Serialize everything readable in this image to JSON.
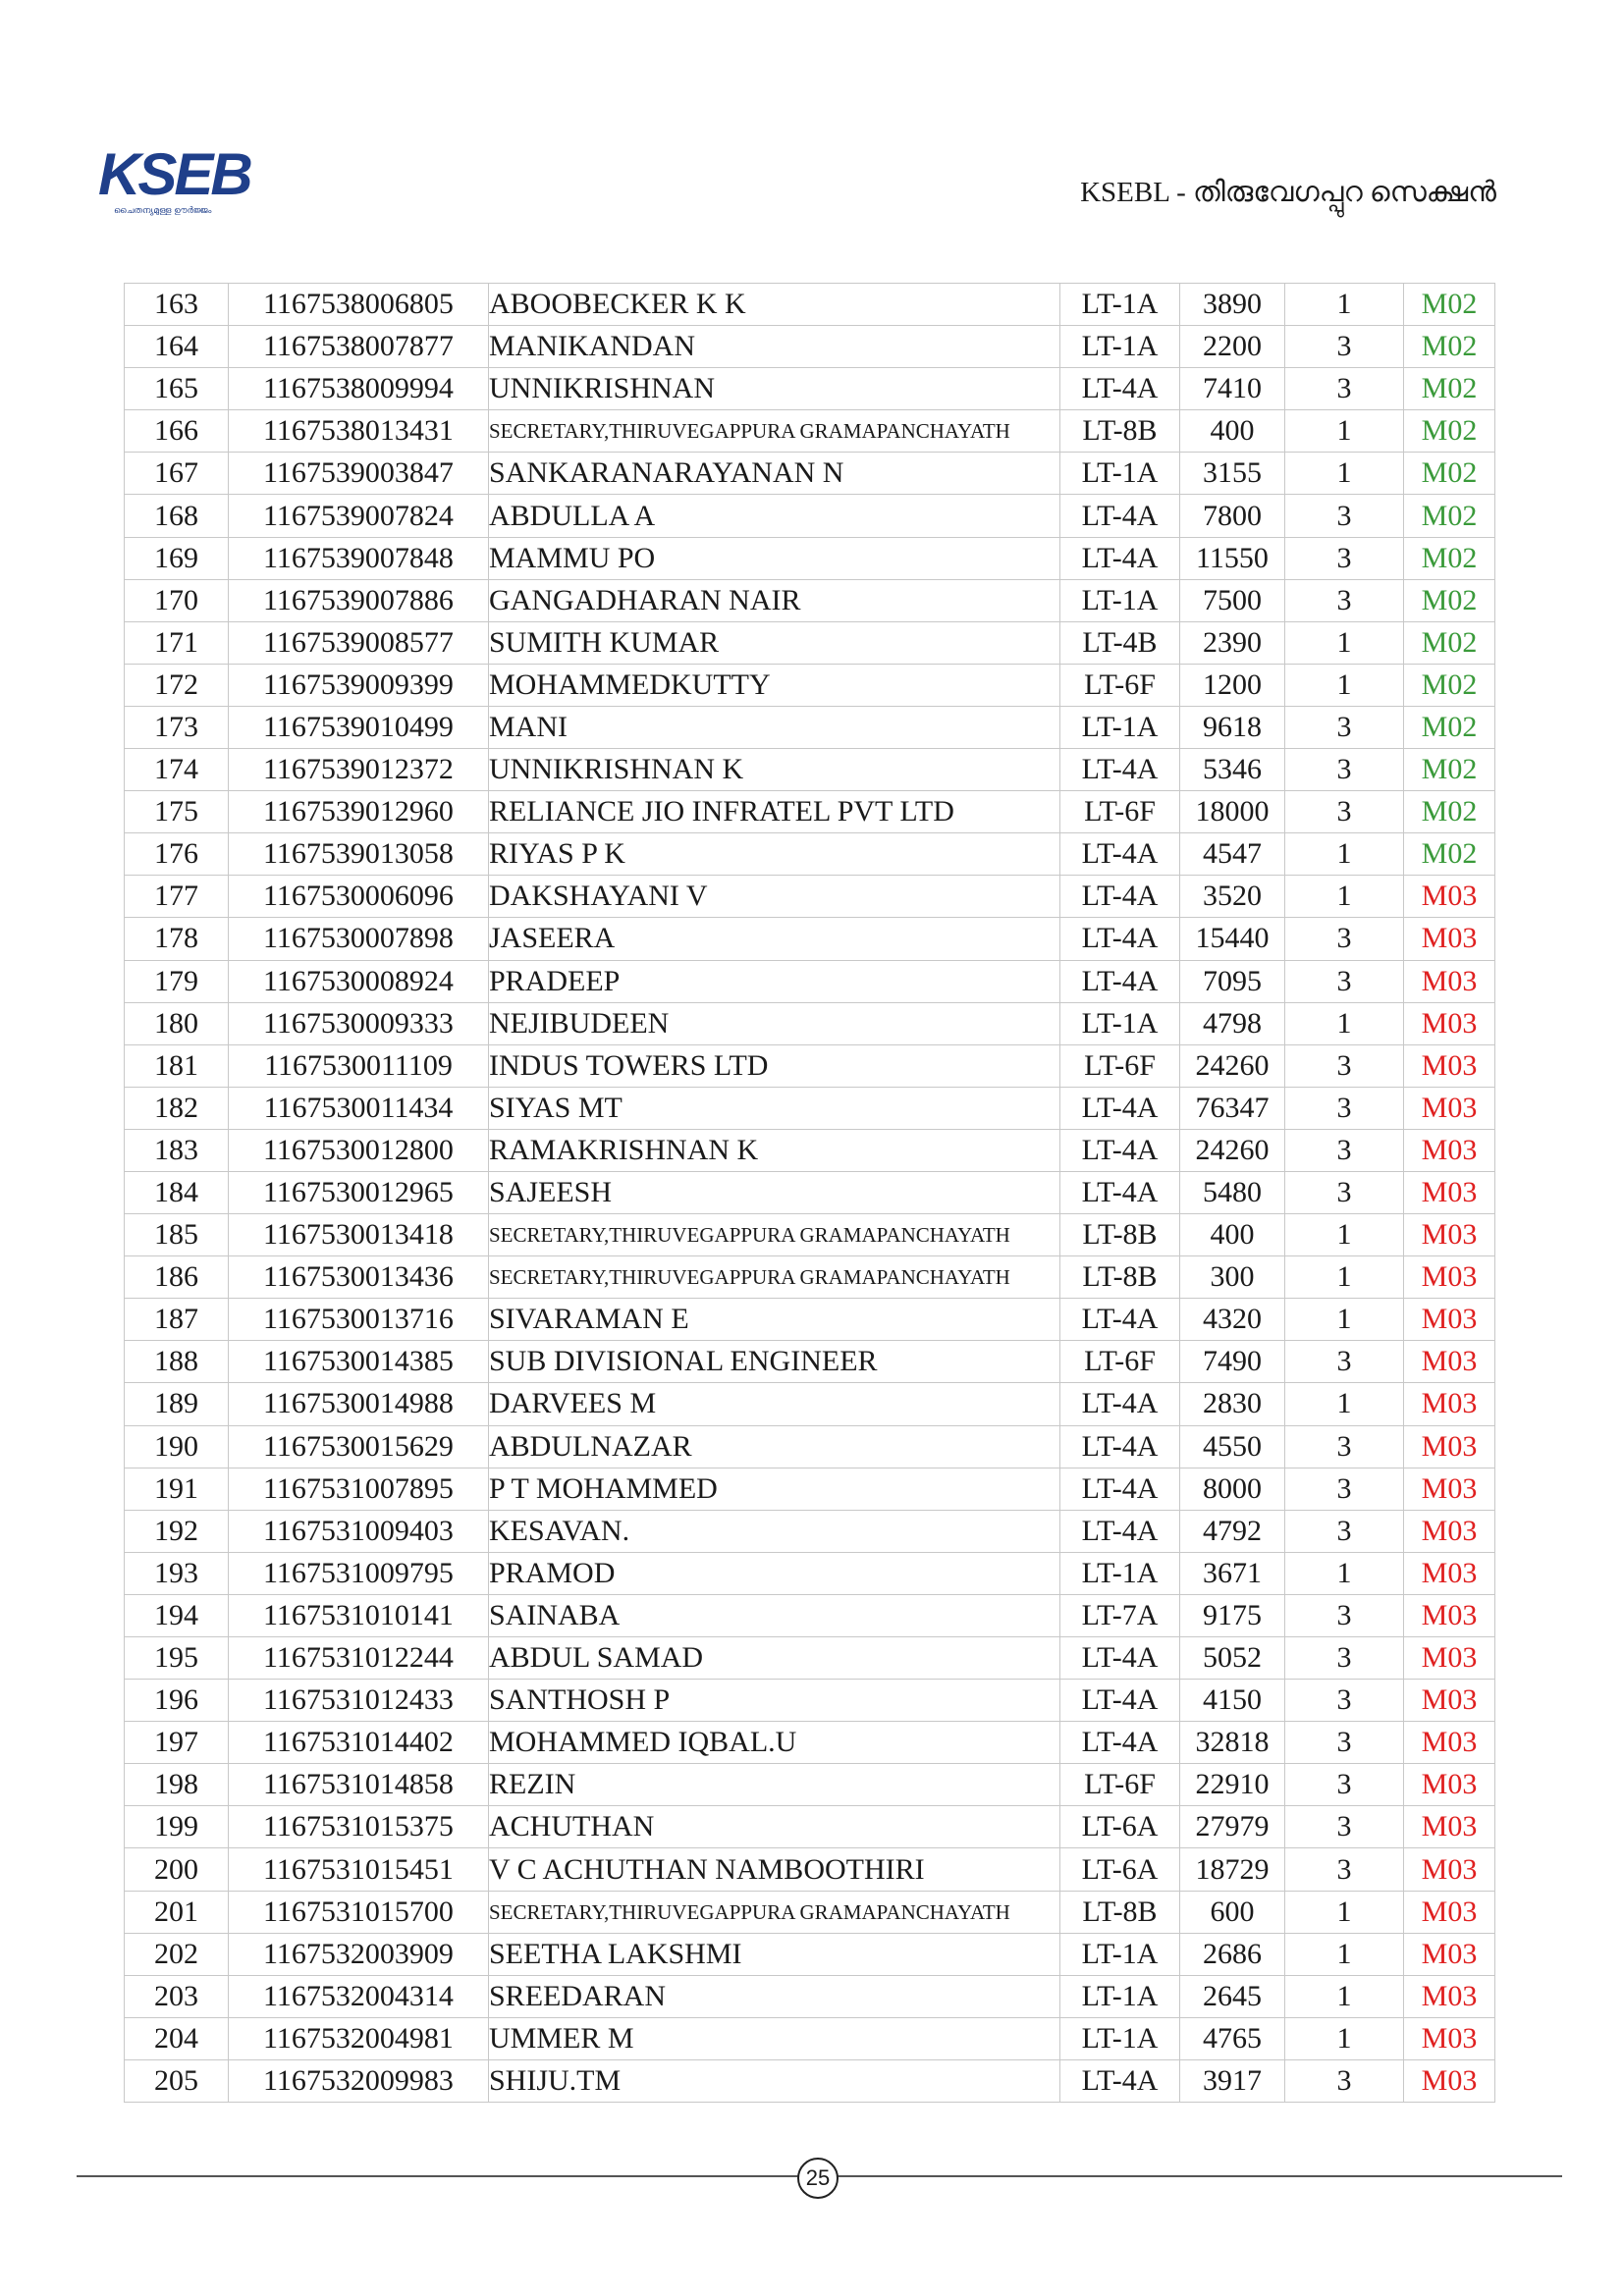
{
  "header": {
    "logo_text": "KSEB",
    "logo_tagline": "ചൈതന്യമുള്ള ഊർജ്ജം",
    "section_title": "KSEBL - തിരുവേഗപ്പുറ സെക്ഷൻ"
  },
  "colors": {
    "m02": "#3a9a3a",
    "m03": "#e02020",
    "logo": "#1f3f8a"
  },
  "rows": [
    {
      "no": "163",
      "consumer": "1167538006805",
      "name": "ABOOBECKER K K",
      "tariff": "LT-1A",
      "load": "3890",
      "phase": "1",
      "mr": "M02"
    },
    {
      "no": "164",
      "consumer": "1167538007877",
      "name": "MANIKANDAN",
      "tariff": "LT-1A",
      "load": "2200",
      "phase": "3",
      "mr": "M02"
    },
    {
      "no": "165",
      "consumer": "1167538009994",
      "name": "UNNIKRISHNAN",
      "tariff": "LT-4A",
      "load": "7410",
      "phase": "3",
      "mr": "M02"
    },
    {
      "no": "166",
      "consumer": "1167538013431",
      "name": "SECRETARY,THIRUVEGAPPURA GRAMAPANCHAYATH",
      "tariff": "LT-8B",
      "load": "400",
      "phase": "1",
      "mr": "M02"
    },
    {
      "no": "167",
      "consumer": "1167539003847",
      "name": "SANKARANARAYANAN N",
      "tariff": "LT-1A",
      "load": "3155",
      "phase": "1",
      "mr": "M02"
    },
    {
      "no": "168",
      "consumer": "1167539007824",
      "name": "ABDULLA A",
      "tariff": "LT-4A",
      "load": "7800",
      "phase": "3",
      "mr": "M02"
    },
    {
      "no": "169",
      "consumer": "1167539007848",
      "name": "MAMMU PO",
      "tariff": "LT-4A",
      "load": "11550",
      "phase": "3",
      "mr": "M02"
    },
    {
      "no": "170",
      "consumer": "1167539007886",
      "name": "GANGADHARAN NAIR",
      "tariff": "LT-1A",
      "load": "7500",
      "phase": "3",
      "mr": "M02"
    },
    {
      "no": "171",
      "consumer": "1167539008577",
      "name": "SUMITH KUMAR",
      "tariff": "LT-4B",
      "load": "2390",
      "phase": "1",
      "mr": "M02"
    },
    {
      "no": "172",
      "consumer": "1167539009399",
      "name": "MOHAMMEDKUTTY",
      "tariff": "LT-6F",
      "load": "1200",
      "phase": "1",
      "mr": "M02"
    },
    {
      "no": "173",
      "consumer": "1167539010499",
      "name": "MANI",
      "tariff": "LT-1A",
      "load": "9618",
      "phase": "3",
      "mr": "M02"
    },
    {
      "no": "174",
      "consumer": "1167539012372",
      "name": "UNNIKRISHNAN K",
      "tariff": "LT-4A",
      "load": "5346",
      "phase": "3",
      "mr": "M02"
    },
    {
      "no": "175",
      "consumer": "1167539012960",
      "name": "RELIANCE JIO INFRATEL PVT LTD",
      "tariff": "LT-6F",
      "load": "18000",
      "phase": "3",
      "mr": "M02"
    },
    {
      "no": "176",
      "consumer": "1167539013058",
      "name": "RIYAS P K",
      "tariff": "LT-4A",
      "load": "4547",
      "phase": "1",
      "mr": "M02"
    },
    {
      "no": "177",
      "consumer": "1167530006096",
      "name": "DAKSHAYANI V",
      "tariff": "LT-4A",
      "load": "3520",
      "phase": "1",
      "mr": "M03"
    },
    {
      "no": "178",
      "consumer": "1167530007898",
      "name": "JASEERA",
      "tariff": "LT-4A",
      "load": "15440",
      "phase": "3",
      "mr": "M03"
    },
    {
      "no": "179",
      "consumer": "1167530008924",
      "name": "PRADEEP",
      "tariff": "LT-4A",
      "load": "7095",
      "phase": "3",
      "mr": "M03"
    },
    {
      "no": "180",
      "consumer": "1167530009333",
      "name": "NEJIBUDEEN",
      "tariff": "LT-1A",
      "load": "4798",
      "phase": "1",
      "mr": "M03"
    },
    {
      "no": "181",
      "consumer": "1167530011109",
      "name": "INDUS TOWERS LTD",
      "tariff": "LT-6F",
      "load": "24260",
      "phase": "3",
      "mr": "M03"
    },
    {
      "no": "182",
      "consumer": "1167530011434",
      "name": "SIYAS MT",
      "tariff": "LT-4A",
      "load": "76347",
      "phase": "3",
      "mr": "M03"
    },
    {
      "no": "183",
      "consumer": "1167530012800",
      "name": "RAMAKRISHNAN K",
      "tariff": "LT-4A",
      "load": "24260",
      "phase": "3",
      "mr": "M03"
    },
    {
      "no": "184",
      "consumer": "1167530012965",
      "name": "SAJEESH",
      "tariff": "LT-4A",
      "load": "5480",
      "phase": "3",
      "mr": "M03"
    },
    {
      "no": "185",
      "consumer": "1167530013418",
      "name": "SECRETARY,THIRUVEGAPPURA GRAMAPANCHAYATH",
      "tariff": "LT-8B",
      "load": "400",
      "phase": "1",
      "mr": "M03"
    },
    {
      "no": "186",
      "consumer": "1167530013436",
      "name": "SECRETARY,THIRUVEGAPPURA GRAMAPANCHAYATH",
      "tariff": "LT-8B",
      "load": "300",
      "phase": "1",
      "mr": "M03"
    },
    {
      "no": "187",
      "consumer": "1167530013716",
      "name": "SIVARAMAN E",
      "tariff": "LT-4A",
      "load": "4320",
      "phase": "1",
      "mr": "M03"
    },
    {
      "no": "188",
      "consumer": "1167530014385",
      "name": "SUB DIVISIONAL ENGINEER",
      "tariff": "LT-6F",
      "load": "7490",
      "phase": "3",
      "mr": "M03"
    },
    {
      "no": "189",
      "consumer": "1167530014988",
      "name": "DARVEES M",
      "tariff": "LT-4A",
      "load": "2830",
      "phase": "1",
      "mr": "M03"
    },
    {
      "no": "190",
      "consumer": "1167530015629",
      "name": "ABDULNAZAR",
      "tariff": "LT-4A",
      "load": "4550",
      "phase": "3",
      "mr": "M03"
    },
    {
      "no": "191",
      "consumer": "1167531007895",
      "name": "P T MOHAMMED",
      "tariff": "LT-4A",
      "load": "8000",
      "phase": "3",
      "mr": "M03"
    },
    {
      "no": "192",
      "consumer": "1167531009403",
      "name": "KESAVAN.",
      "tariff": "LT-4A",
      "load": "4792",
      "phase": "3",
      "mr": "M03"
    },
    {
      "no": "193",
      "consumer": "1167531009795",
      "name": "PRAMOD",
      "tariff": "LT-1A",
      "load": "3671",
      "phase": "1",
      "mr": "M03"
    },
    {
      "no": "194",
      "consumer": "1167531010141",
      "name": "SAINABA",
      "tariff": "LT-7A",
      "load": "9175",
      "phase": "3",
      "mr": "M03"
    },
    {
      "no": "195",
      "consumer": "1167531012244",
      "name": "ABDUL SAMAD",
      "tariff": "LT-4A",
      "load": "5052",
      "phase": "3",
      "mr": "M03"
    },
    {
      "no": "196",
      "consumer": "1167531012433",
      "name": "SANTHOSH P",
      "tariff": "LT-4A",
      "load": "4150",
      "phase": "3",
      "mr": "M03"
    },
    {
      "no": "197",
      "consumer": "1167531014402",
      "name": "MOHAMMED IQBAL.U",
      "tariff": "LT-4A",
      "load": "32818",
      "phase": "3",
      "mr": "M03"
    },
    {
      "no": "198",
      "consumer": "1167531014858",
      "name": "REZIN",
      "tariff": "LT-6F",
      "load": "22910",
      "phase": "3",
      "mr": "M03"
    },
    {
      "no": "199",
      "consumer": "1167531015375",
      "name": "ACHUTHAN",
      "tariff": "LT-6A",
      "load": "27979",
      "phase": "3",
      "mr": "M03"
    },
    {
      "no": "200",
      "consumer": "1167531015451",
      "name": "V C ACHUTHAN NAMBOOTHIRI",
      "tariff": "LT-6A",
      "load": "18729",
      "phase": "3",
      "mr": "M03"
    },
    {
      "no": "201",
      "consumer": "1167531015700",
      "name": "SECRETARY,THIRUVEGAPPURA GRAMAPANCHAYATH",
      "tariff": "LT-8B",
      "load": "600",
      "phase": "1",
      "mr": "M03"
    },
    {
      "no": "202",
      "consumer": "1167532003909",
      "name": "SEETHA LAKSHMI",
      "tariff": "LT-1A",
      "load": "2686",
      "phase": "1",
      "mr": "M03"
    },
    {
      "no": "203",
      "consumer": "1167532004314",
      "name": "SREEDARAN",
      "tariff": "LT-1A",
      "load": "2645",
      "phase": "1",
      "mr": "M03"
    },
    {
      "no": "204",
      "consumer": "1167532004981",
      "name": "UMMER M",
      "tariff": "LT-1A",
      "load": "4765",
      "phase": "1",
      "mr": "M03"
    },
    {
      "no": "205",
      "consumer": "1167532009983",
      "name": "SHIJU.TM",
      "tariff": "LT-4A",
      "load": "3917",
      "phase": "3",
      "mr": "M03"
    }
  ],
  "footer": {
    "page_number": "25"
  }
}
